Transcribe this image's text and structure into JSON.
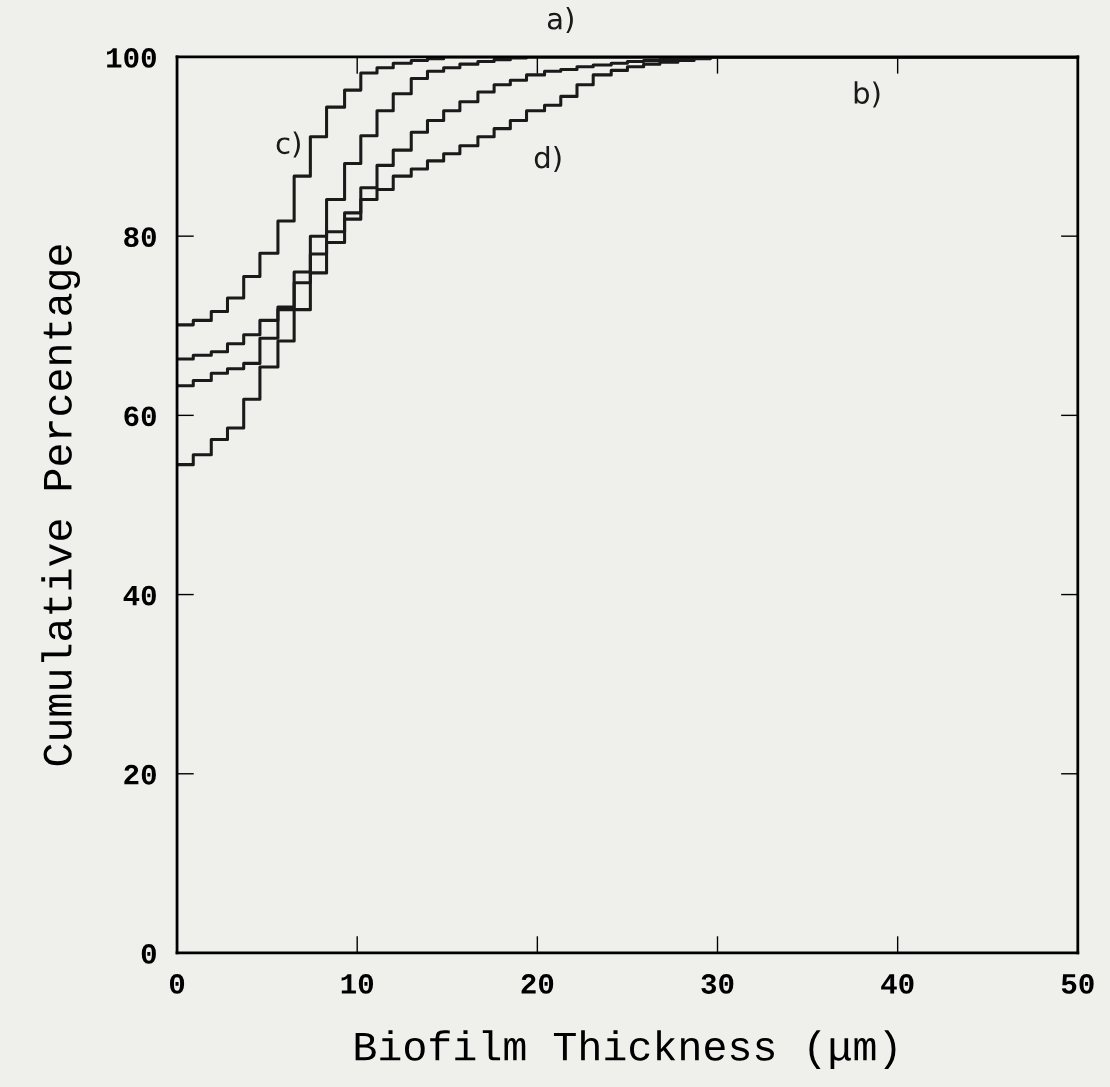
{
  "chart_data": {
    "type": "step",
    "xlabel": "Biofilm Thickness (μm)",
    "ylabel": "Cumulative Percentage",
    "xlim": [
      0,
      50
    ],
    "ylim": [
      0,
      100
    ],
    "xticks": [
      0,
      10,
      20,
      30,
      40,
      50
    ],
    "yticks": [
      0,
      20,
      40,
      60,
      80,
      100
    ],
    "grid": false,
    "marker": "none",
    "line_style": "solid",
    "series": [
      {
        "name": "a)",
        "color": "#1a1a1a",
        "x": [
          0,
          0.9,
          1.9,
          2.8,
          3.7,
          4.6,
          5.6,
          6.5,
          7.4,
          8.3,
          9.3,
          10.2,
          11.1,
          12.0,
          13.0,
          13.9,
          14.8,
          15.7,
          16.7,
          17.6,
          18.5,
          19.4,
          50
        ],
        "values": [
          66.3,
          66.7,
          67.1,
          68.0,
          69.0,
          70.6,
          72.1,
          76.0,
          80.0,
          84.1,
          88.1,
          91.2,
          94.0,
          95.9,
          97.6,
          98.4,
          98.8,
          99.2,
          99.5,
          99.7,
          99.9,
          100,
          100
        ]
      },
      {
        "name": "b)",
        "color": "#1a1a1a",
        "x": [
          0,
          0.9,
          1.9,
          2.8,
          3.7,
          4.6,
          5.6,
          6.5,
          7.4,
          8.3,
          9.3,
          10.2,
          11.1,
          12.0,
          13.0,
          13.9,
          14.8,
          15.7,
          16.7,
          17.6,
          18.5,
          19.4,
          20.4,
          21.3,
          22.2,
          23.1,
          24.1,
          25.0,
          25.9,
          26.8,
          27.8,
          28.7,
          29.6,
          50
        ],
        "values": [
          63.3,
          63.9,
          64.7,
          65.2,
          65.8,
          68.6,
          71.8,
          74.8,
          78.0,
          80.5,
          82.6,
          85.4,
          87.9,
          89.6,
          91.6,
          92.9,
          94.0,
          95.0,
          96.1,
          96.9,
          97.4,
          98.0,
          98.4,
          98.6,
          98.9,
          99.1,
          99.3,
          99.5,
          99.6,
          99.7,
          99.8,
          99.9,
          100,
          100
        ]
      },
      {
        "name": "c)",
        "color": "#1a1a1a",
        "x": [
          0,
          0.9,
          1.9,
          2.8,
          3.7,
          4.6,
          5.6,
          6.5,
          7.4,
          8.3,
          9.3,
          10.2,
          11.1,
          12.0,
          13.0,
          13.9,
          14.8,
          50
        ],
        "values": [
          70.1,
          70.6,
          71.6,
          73.1,
          75.5,
          78.1,
          81.7,
          86.7,
          91.1,
          94.4,
          96.3,
          98.2,
          98.8,
          99.3,
          99.6,
          99.8,
          100,
          100
        ]
      },
      {
        "name": "d)",
        "color": "#1a1a1a",
        "x": [
          0,
          0.9,
          1.9,
          2.8,
          3.7,
          4.6,
          5.6,
          6.5,
          7.4,
          8.3,
          9.3,
          10.2,
          11.1,
          12.0,
          13.0,
          13.9,
          14.8,
          15.7,
          16.7,
          17.6,
          18.5,
          19.4,
          20.4,
          21.3,
          22.2,
          23.1,
          24.1,
          25.0,
          25.9,
          26.8,
          27.8,
          28.7,
          29.6,
          50
        ],
        "values": [
          54.5,
          55.6,
          57.3,
          58.6,
          61.8,
          65.4,
          68.3,
          71.8,
          75.9,
          79.3,
          81.9,
          84.1,
          85.2,
          86.7,
          87.5,
          88.4,
          89.2,
          90.1,
          91.1,
          92.0,
          92.9,
          94.0,
          94.6,
          95.6,
          96.9,
          98.0,
          98.5,
          98.9,
          99.2,
          99.4,
          99.6,
          99.8,
          100,
          100
        ]
      }
    ]
  }
}
